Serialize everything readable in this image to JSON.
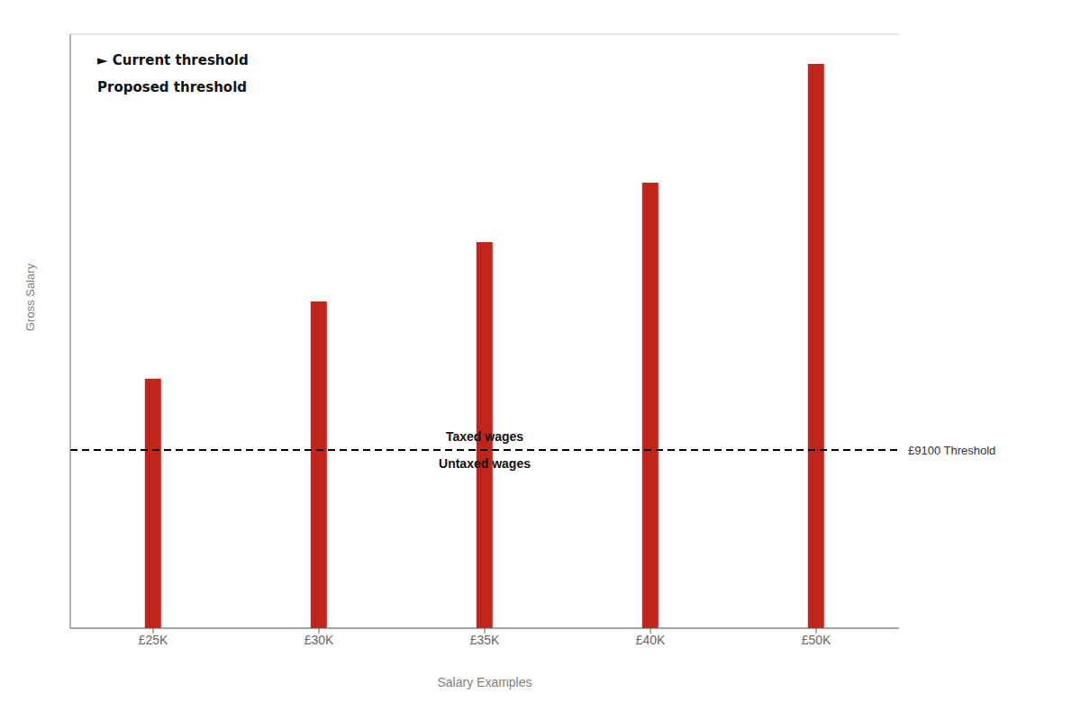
{
  "chart_data": {
    "type": "bar",
    "categories": [
      "£25K",
      "£30K",
      "£35K",
      "£40K",
      "£50K"
    ],
    "values": [
      0.42,
      0.55,
      0.65,
      0.75,
      0.95
    ],
    "color": "#c0251b",
    "xlabel": "Salary Examples",
    "ylabel": "Gross Salary",
    "ylim": [
      0,
      1.0
    ],
    "yticks": [
      0.2,
      0.4,
      0.6,
      0.8,
      1.0
    ],
    "grid": true,
    "tick_labels": "x",
    "threshold": {
      "value": 0.3,
      "label": "£9100 Threshold",
      "color": "#000000",
      "line_style": "dashed",
      "annotation_above": "Taxed wages",
      "annotation_below": "Untaxed wages"
    },
    "annotations": [
      "► Current threshold",
      "Proposed threshold"
    ]
  }
}
